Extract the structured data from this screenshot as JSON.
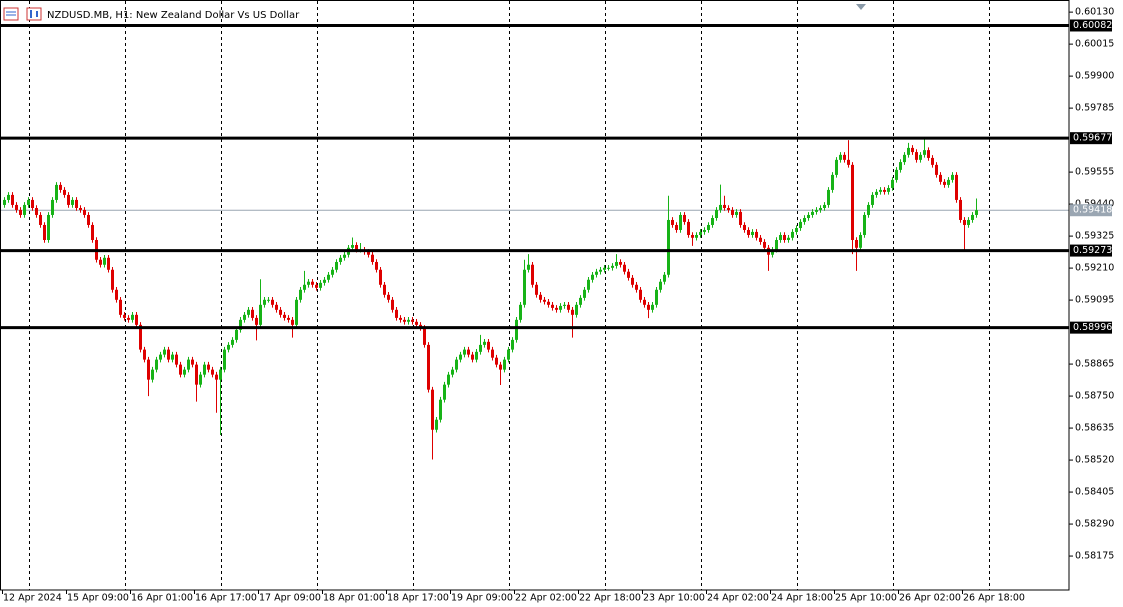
{
  "chart_data": {
    "type": "candlestick",
    "title": "NZDUSD.MB, H1: New Zealand Dollar Vs US Dollar",
    "up_color": "#17b317",
    "down_color": "#de0000",
    "level_color": "#000000",
    "price_line_color": "#9aa6b2",
    "ylim": [
      0.58053,
      0.6017
    ],
    "yticks": [
      {
        "value": 0.6013,
        "label": "0.60130"
      },
      {
        "value": 0.60015,
        "label": "0.60015"
      },
      {
        "value": 0.599,
        "label": "0.59900"
      },
      {
        "value": 0.59785,
        "label": "0.59785"
      },
      {
        "value": 0.59555,
        "label": "0.59555"
      },
      {
        "value": 0.5944,
        "label": "0.59440"
      },
      {
        "value": 0.59325,
        "label": "0.59325"
      },
      {
        "value": 0.5921,
        "label": "0.59210"
      },
      {
        "value": 0.59095,
        "label": "0.59095"
      },
      {
        "value": 0.58865,
        "label": "0.58865"
      },
      {
        "value": 0.5875,
        "label": "0.58750"
      },
      {
        "value": 0.58635,
        "label": "0.58635"
      },
      {
        "value": 0.5852,
        "label": "0.58520"
      },
      {
        "value": 0.58405,
        "label": "0.58405"
      },
      {
        "value": 0.5829,
        "label": "0.58290"
      },
      {
        "value": 0.58175,
        "label": "0.58175"
      }
    ],
    "levels": [
      0.60082,
      0.59677,
      0.59273,
      0.58996
    ],
    "current_price": 0.59418,
    "categories": [
      "12 Apr 2024",
      null,
      null,
      null,
      null,
      null,
      null,
      null,
      null,
      null,
      null,
      null,
      null,
      null,
      null,
      null,
      "15 Apr 09:00",
      null,
      null,
      null,
      null,
      null,
      null,
      null,
      null,
      null,
      null,
      null,
      null,
      null,
      null,
      null,
      "16 Apr 01:00",
      null,
      null,
      null,
      null,
      null,
      null,
      null,
      null,
      null,
      null,
      null,
      null,
      null,
      null,
      null,
      "16 Apr 17:00",
      null,
      null,
      null,
      null,
      null,
      null,
      null,
      null,
      null,
      null,
      null,
      null,
      null,
      null,
      null,
      "17 Apr 09:00",
      null,
      null,
      null,
      null,
      null,
      null,
      null,
      null,
      null,
      null,
      null,
      null,
      null,
      null,
      null,
      "18 Apr 01:00",
      null,
      null,
      null,
      null,
      null,
      null,
      null,
      null,
      null,
      null,
      null,
      null,
      null,
      null,
      null,
      "18 Apr 17:00",
      null,
      null,
      null,
      null,
      null,
      null,
      null,
      null,
      null,
      null,
      null,
      null,
      null,
      null,
      null,
      "19 Apr 09:00",
      null,
      null,
      null,
      null,
      null,
      null,
      null,
      null,
      null,
      null,
      null,
      null,
      null,
      null,
      null,
      "22 Apr 02:00",
      null,
      null,
      null,
      null,
      null,
      null,
      null,
      null,
      null,
      null,
      null,
      null,
      null,
      null,
      null,
      "22 Apr 18:00",
      null,
      null,
      null,
      null,
      null,
      null,
      null,
      null,
      null,
      null,
      null,
      null,
      null,
      null,
      null,
      "23 Apr 10:00",
      null,
      null,
      null,
      null,
      null,
      null,
      null,
      null,
      null,
      null,
      null,
      null,
      null,
      null,
      null,
      "24 Apr 02:00",
      null,
      null,
      null,
      null,
      null,
      null,
      null,
      null,
      null,
      null,
      null,
      null,
      null,
      null,
      null,
      "24 Apr 18:00",
      null,
      null,
      null,
      null,
      null,
      null,
      null,
      null,
      null,
      null,
      null,
      null,
      null,
      null,
      null,
      "25 Apr 10:00",
      null,
      null,
      null,
      null,
      null,
      null,
      null,
      null,
      null,
      null,
      null,
      null,
      null,
      null,
      null,
      "26 Apr 02:00",
      null,
      null,
      null,
      null,
      null,
      null,
      null,
      null,
      null,
      null,
      null,
      null,
      null,
      null,
      null,
      "26 Apr 18:00",
      null,
      null,
      null
    ],
    "open": [
      0.59437,
      0.59455,
      0.59473,
      0.59437,
      0.59419,
      0.59401,
      0.59437,
      0.59455,
      0.59426,
      0.59401,
      0.59365,
      0.59311,
      0.59401,
      0.59455,
      0.59509,
      0.59491,
      0.59473,
      0.59437,
      0.59455,
      0.59426,
      0.59419,
      0.59401,
      0.59365,
      0.59311,
      0.5924,
      0.59222,
      0.59247,
      0.59204,
      0.59132,
      0.59096,
      0.59042,
      0.59031,
      0.59024,
      0.59042,
      0.59006,
      0.58917,
      0.58881,
      0.58809,
      0.58845,
      0.58881,
      0.58899,
      0.58917,
      0.58881,
      0.58899,
      0.58863,
      0.58827,
      0.58845,
      0.58881,
      0.58863,
      0.58791,
      0.58827,
      0.58863,
      0.58845,
      0.58827,
      0.58809,
      0.58845,
      0.58917,
      0.58934,
      0.58952,
      0.58988,
      0.59024,
      0.59042,
      0.5906,
      0.59031,
      0.59006,
      0.59078,
      0.59096,
      0.59096,
      0.59078,
      0.5906,
      0.59042,
      0.59031,
      0.59024,
      0.59006,
      0.59096,
      0.59132,
      0.5915,
      0.59161,
      0.5915,
      0.59139,
      0.59157,
      0.59168,
      0.59186,
      0.59204,
      0.59232,
      0.59247,
      0.59258,
      0.59283,
      0.59293,
      0.59276,
      0.59276,
      0.59268,
      0.59258,
      0.59232,
      0.59204,
      0.5915,
      0.59114,
      0.59096,
      0.5906,
      0.59031,
      0.59024,
      0.59017,
      0.59024,
      0.59017,
      0.59006,
      0.58995,
      0.58934,
      0.58773,
      0.58629,
      0.58665,
      0.58737,
      0.58791,
      0.58827,
      0.58845,
      0.58881,
      0.58899,
      0.58917,
      0.58899,
      0.58881,
      0.58909,
      0.58934,
      0.58945,
      0.58917,
      0.58888,
      0.58863,
      0.58845,
      0.58881,
      0.58917,
      0.58952,
      0.59024,
      0.59078,
      0.59204,
      0.59222,
      0.5915,
      0.59114,
      0.59096,
      0.59089,
      0.59078,
      0.59067,
      0.5906,
      0.59074,
      0.59078,
      0.5906,
      0.59042,
      0.59078,
      0.59103,
      0.59132,
      0.59168,
      0.59186,
      0.59197,
      0.59204,
      0.59211,
      0.59211,
      0.59218,
      0.59232,
      0.59222,
      0.59197,
      0.59175,
      0.5915,
      0.59132,
      0.59096,
      0.59078,
      0.5906,
      0.59078,
      0.59132,
      0.59161,
      0.59186,
      0.59383,
      0.59365,
      0.59347,
      0.59401,
      0.59376,
      0.59329,
      0.59319,
      0.59329,
      0.5934,
      0.59347,
      0.59365,
      0.5939,
      0.59419,
      0.59437,
      0.59426,
      0.59419,
      0.59401,
      0.59412,
      0.59365,
      0.59347,
      0.59329,
      0.5934,
      0.59319,
      0.59304,
      0.59283,
      0.59258,
      0.59276,
      0.59311,
      0.59329,
      0.59311,
      0.59319,
      0.5934,
      0.59354,
      0.59376,
      0.5939,
      0.59401,
      0.59412,
      0.59419,
      0.59426,
      0.59437,
      0.59491,
      0.59545,
      0.59599,
      0.59617,
      0.59599,
      0.59581,
      0.59311,
      0.59283,
      0.59329,
      0.59401,
      0.59437,
      0.59473,
      0.59484,
      0.59491,
      0.59484,
      0.59498,
      0.59527,
      0.59563,
      0.59591,
      0.59617,
      0.59642,
      0.59627,
      0.59599,
      0.59617,
      0.59634,
      0.59606,
      0.59581,
      0.59545,
      0.5952,
      0.59509,
      0.59527,
      0.59545,
      0.59455,
      0.59383,
      0.59365,
      0.59383,
      0.59401
    ],
    "high": [
      0.59465,
      0.59483,
      0.59483,
      0.59447,
      0.59429,
      0.59447,
      0.59465,
      0.59465,
      0.59436,
      0.59411,
      0.59375,
      0.59411,
      0.59465,
      0.59519,
      0.59519,
      0.59501,
      0.59483,
      0.59465,
      0.59465,
      0.59436,
      0.59429,
      0.59411,
      0.59375,
      0.59321,
      0.5925,
      0.59257,
      0.59257,
      0.59214,
      0.59142,
      0.59106,
      0.59052,
      0.59041,
      0.59052,
      0.59052,
      0.59016,
      0.58927,
      0.58891,
      0.58855,
      0.58891,
      0.58909,
      0.58927,
      0.58927,
      0.58909,
      0.58909,
      0.58873,
      0.58855,
      0.58891,
      0.58891,
      0.58873,
      0.58837,
      0.58873,
      0.58873,
      0.58855,
      0.58837,
      0.58855,
      0.58927,
      0.58944,
      0.58962,
      0.58998,
      0.59034,
      0.59052,
      0.5907,
      0.5907,
      0.59041,
      0.5917,
      0.59106,
      0.59106,
      0.59106,
      0.59088,
      0.5907,
      0.59052,
      0.59041,
      0.59034,
      0.59106,
      0.59142,
      0.592,
      0.59171,
      0.59171,
      0.5916,
      0.59167,
      0.59178,
      0.59196,
      0.59214,
      0.59242,
      0.59257,
      0.59268,
      0.59293,
      0.5932,
      0.59303,
      0.593,
      0.59286,
      0.59278,
      0.59268,
      0.59242,
      0.59214,
      0.5916,
      0.59124,
      0.59106,
      0.5907,
      0.59041,
      0.59034,
      0.59034,
      0.59034,
      0.59027,
      0.59016,
      0.59005,
      0.58944,
      0.58783,
      0.58675,
      0.58747,
      0.58801,
      0.58837,
      0.58855,
      0.58891,
      0.58909,
      0.58927,
      0.58927,
      0.58909,
      0.58919,
      0.5897,
      0.58955,
      0.58955,
      0.58927,
      0.58898,
      0.58873,
      0.58891,
      0.58927,
      0.58962,
      0.59034,
      0.59088,
      0.5924,
      0.5926,
      0.59232,
      0.5916,
      0.59124,
      0.59106,
      0.59099,
      0.59088,
      0.59077,
      0.59084,
      0.59088,
      0.59088,
      0.5907,
      0.59088,
      0.59113,
      0.59142,
      0.59178,
      0.59196,
      0.59207,
      0.59214,
      0.59221,
      0.59221,
      0.59228,
      0.5926,
      0.59242,
      0.59232,
      0.59207,
      0.59185,
      0.5916,
      0.59142,
      0.59106,
      0.59088,
      0.59088,
      0.59142,
      0.59171,
      0.59196,
      0.5947,
      0.59393,
      0.59375,
      0.59411,
      0.59411,
      0.59386,
      0.59339,
      0.59339,
      0.5935,
      0.59357,
      0.59375,
      0.594,
      0.59429,
      0.5951,
      0.5947,
      0.59436,
      0.59429,
      0.59422,
      0.59422,
      0.59375,
      0.59357,
      0.5935,
      0.5935,
      0.59329,
      0.59314,
      0.59293,
      0.59286,
      0.59321,
      0.59339,
      0.59339,
      0.59329,
      0.5935,
      0.59364,
      0.59386,
      0.594,
      0.59411,
      0.59422,
      0.59429,
      0.59436,
      0.59447,
      0.59501,
      0.59555,
      0.59609,
      0.59627,
      0.59627,
      0.5967,
      0.59591,
      0.59321,
      0.59339,
      0.59411,
      0.59447,
      0.59483,
      0.59494,
      0.59501,
      0.59501,
      0.59508,
      0.59537,
      0.59573,
      0.59601,
      0.59627,
      0.5966,
      0.59652,
      0.59637,
      0.59627,
      0.5968,
      0.59644,
      0.59616,
      0.59591,
      0.59555,
      0.5953,
      0.59537,
      0.59555,
      0.59555,
      0.59465,
      0.59393,
      0.59393,
      0.59411,
      0.5946
    ],
    "low": [
      0.59427,
      0.59445,
      0.59427,
      0.59409,
      0.59391,
      0.59391,
      0.59427,
      0.59416,
      0.59391,
      0.59355,
      0.59301,
      0.59301,
      0.59391,
      0.59445,
      0.59481,
      0.59463,
      0.59427,
      0.59427,
      0.59416,
      0.59409,
      0.59391,
      0.59355,
      0.59301,
      0.5923,
      0.59212,
      0.59212,
      0.59194,
      0.59122,
      0.59086,
      0.59032,
      0.59021,
      0.59014,
      0.59014,
      0.58996,
      0.58907,
      0.58871,
      0.5875,
      0.58799,
      0.58835,
      0.58871,
      0.58889,
      0.58871,
      0.58871,
      0.58853,
      0.58817,
      0.58817,
      0.58835,
      0.58853,
      0.5873,
      0.58781,
      0.58817,
      0.58835,
      0.58817,
      0.5869,
      0.5861,
      0.58835,
      0.58907,
      0.58924,
      0.58942,
      0.58978,
      0.59014,
      0.59032,
      0.59021,
      0.5895,
      0.58996,
      0.59068,
      0.59086,
      0.59068,
      0.5905,
      0.59032,
      0.59021,
      0.59014,
      0.5896,
      0.58996,
      0.59086,
      0.59122,
      0.5914,
      0.5914,
      0.59129,
      0.59129,
      0.59147,
      0.59158,
      0.59176,
      0.59194,
      0.59222,
      0.59237,
      0.59248,
      0.59273,
      0.59266,
      0.59266,
      0.59258,
      0.59248,
      0.59222,
      0.59194,
      0.5914,
      0.59104,
      0.59086,
      0.5905,
      0.59021,
      0.59014,
      0.59007,
      0.59007,
      0.59007,
      0.58996,
      0.58985,
      0.58924,
      0.58763,
      0.58522,
      0.58619,
      0.58655,
      0.58727,
      0.58781,
      0.58817,
      0.58835,
      0.58871,
      0.58889,
      0.58889,
      0.58871,
      0.58871,
      0.58899,
      0.58924,
      0.58907,
      0.58878,
      0.58853,
      0.5879,
      0.58835,
      0.58871,
      0.58907,
      0.58942,
      0.59014,
      0.59068,
      0.59194,
      0.5914,
      0.59104,
      0.59086,
      0.59079,
      0.59068,
      0.59057,
      0.5905,
      0.5905,
      0.59064,
      0.5905,
      0.5896,
      0.59032,
      0.59068,
      0.59093,
      0.59122,
      0.59158,
      0.59176,
      0.59187,
      0.59194,
      0.59201,
      0.59201,
      0.59208,
      0.59212,
      0.59187,
      0.59165,
      0.5914,
      0.59122,
      0.59086,
      0.59068,
      0.5903,
      0.5905,
      0.59068,
      0.59122,
      0.59151,
      0.59176,
      0.59355,
      0.59337,
      0.59337,
      0.59366,
      0.59319,
      0.5929,
      0.59309,
      0.59319,
      0.5933,
      0.59337,
      0.59355,
      0.5938,
      0.59409,
      0.59416,
      0.59409,
      0.59391,
      0.59391,
      0.59355,
      0.59337,
      0.59319,
      0.59319,
      0.59309,
      0.59294,
      0.59273,
      0.592,
      0.59248,
      0.59266,
      0.59301,
      0.59301,
      0.59301,
      0.59309,
      0.5933,
      0.59344,
      0.59366,
      0.5938,
      0.59391,
      0.59402,
      0.59409,
      0.59416,
      0.59427,
      0.59481,
      0.59535,
      0.59589,
      0.59589,
      0.59571,
      0.5926,
      0.592,
      0.59273,
      0.59319,
      0.59391,
      0.59427,
      0.59463,
      0.59474,
      0.59474,
      0.59474,
      0.59488,
      0.59517,
      0.59553,
      0.59581,
      0.59607,
      0.59617,
      0.59589,
      0.59589,
      0.59607,
      0.59596,
      0.59571,
      0.59535,
      0.5951,
      0.59499,
      0.59499,
      0.59517,
      0.59445,
      0.59373,
      0.5927,
      0.59355,
      0.59373,
      0.59391
    ],
    "close": [
      0.59455,
      0.59473,
      0.59437,
      0.59419,
      0.59401,
      0.59437,
      0.59455,
      0.59426,
      0.59401,
      0.59365,
      0.59311,
      0.59401,
      0.59455,
      0.59509,
      0.59491,
      0.59473,
      0.59437,
      0.59455,
      0.59426,
      0.59419,
      0.59401,
      0.59365,
      0.59311,
      0.5924,
      0.59222,
      0.59247,
      0.59204,
      0.59132,
      0.59096,
      0.59042,
      0.59031,
      0.59024,
      0.59042,
      0.59006,
      0.58917,
      0.58881,
      0.58809,
      0.58845,
      0.58881,
      0.58899,
      0.58917,
      0.58881,
      0.58899,
      0.58863,
      0.58827,
      0.58845,
      0.58881,
      0.58863,
      0.58791,
      0.58827,
      0.58863,
      0.58845,
      0.58827,
      0.58809,
      0.58845,
      0.58917,
      0.58934,
      0.58952,
      0.58988,
      0.59024,
      0.59042,
      0.5906,
      0.59031,
      0.59006,
      0.59078,
      0.59096,
      0.59096,
      0.59078,
      0.5906,
      0.59042,
      0.59031,
      0.59024,
      0.59006,
      0.59096,
      0.59132,
      0.5915,
      0.59161,
      0.5915,
      0.59139,
      0.59157,
      0.59168,
      0.59186,
      0.59204,
      0.59232,
      0.59247,
      0.59258,
      0.59283,
      0.59293,
      0.59276,
      0.59276,
      0.59268,
      0.59258,
      0.59232,
      0.59204,
      0.5915,
      0.59114,
      0.59096,
      0.5906,
      0.59031,
      0.59024,
      0.59017,
      0.59024,
      0.59017,
      0.59006,
      0.58995,
      0.58934,
      0.58773,
      0.58629,
      0.58665,
      0.58737,
      0.58791,
      0.58827,
      0.58845,
      0.58881,
      0.58899,
      0.58917,
      0.58899,
      0.58881,
      0.58909,
      0.58934,
      0.58945,
      0.58917,
      0.58888,
      0.58863,
      0.58845,
      0.58881,
      0.58917,
      0.58952,
      0.59024,
      0.59078,
      0.59204,
      0.59222,
      0.5915,
      0.59114,
      0.59096,
      0.59089,
      0.59078,
      0.59067,
      0.5906,
      0.59074,
      0.59078,
      0.5906,
      0.59042,
      0.59078,
      0.59103,
      0.59132,
      0.59168,
      0.59186,
      0.59197,
      0.59204,
      0.59211,
      0.59211,
      0.59218,
      0.59232,
      0.59222,
      0.59197,
      0.59175,
      0.5915,
      0.59132,
      0.59096,
      0.59078,
      0.5906,
      0.59078,
      0.59132,
      0.59161,
      0.59186,
      0.59383,
      0.59365,
      0.59347,
      0.59401,
      0.59376,
      0.59329,
      0.59319,
      0.59329,
      0.5934,
      0.59347,
      0.59365,
      0.5939,
      0.59419,
      0.59437,
      0.59426,
      0.59419,
      0.59401,
      0.59412,
      0.59365,
      0.59347,
      0.59329,
      0.5934,
      0.59319,
      0.59304,
      0.59283,
      0.59258,
      0.59276,
      0.59311,
      0.59329,
      0.59311,
      0.59319,
      0.5934,
      0.59354,
      0.59376,
      0.5939,
      0.59401,
      0.59412,
      0.59419,
      0.59426,
      0.59437,
      0.59491,
      0.59545,
      0.59599,
      0.59617,
      0.59599,
      0.59581,
      0.59311,
      0.59283,
      0.59329,
      0.59401,
      0.59437,
      0.59473,
      0.59484,
      0.59491,
      0.59484,
      0.59498,
      0.59527,
      0.59563,
      0.59591,
      0.59617,
      0.59642,
      0.59627,
      0.59599,
      0.59617,
      0.59634,
      0.59606,
      0.59581,
      0.59545,
      0.5952,
      0.59509,
      0.59527,
      0.59545,
      0.59455,
      0.59383,
      0.59365,
      0.59383,
      0.59401,
      0.59418
    ]
  }
}
